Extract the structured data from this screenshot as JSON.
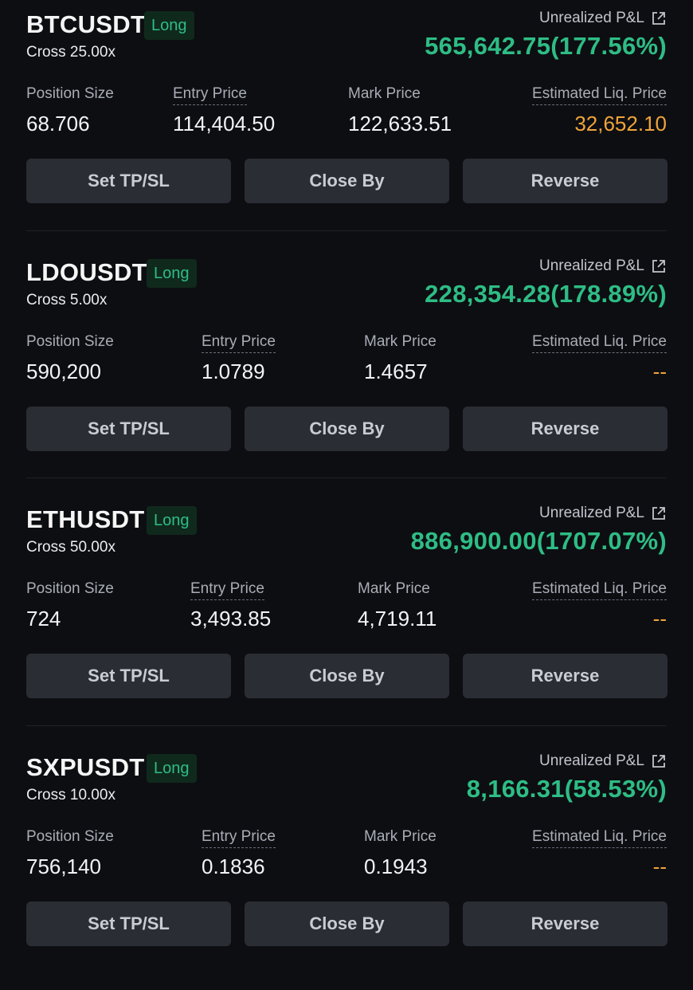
{
  "labels": {
    "unrealized_pnl": "Unrealized P&L",
    "position_size": "Position Size",
    "entry_price": "Entry Price",
    "mark_price": "Mark Price",
    "est_liq_price": "Estimated Liq. Price",
    "set_tpsl": "Set TP/SL",
    "close_by": "Close By",
    "reverse": "Reverse"
  },
  "colors": {
    "profit_green": "#2ebd85",
    "liq_orange": "#f0a43a",
    "background": "#0d0e12",
    "button_bg": "#2a2d34"
  },
  "icons": {
    "pnl_share": "external-link-icon"
  },
  "positions": [
    {
      "symbol": "BTCUSDT",
      "side": "Long",
      "margin_mode": "Cross 25.00x",
      "pnl": "565,642.75(177.56%)",
      "position_size": "68.706",
      "entry_price": "114,404.50",
      "mark_price": "122,633.51",
      "liq_price": "32,652.10"
    },
    {
      "symbol": "LDOUSDT",
      "side": "Long",
      "margin_mode": "Cross 5.00x",
      "pnl": "228,354.28(178.89%)",
      "position_size": "590,200",
      "entry_price": "1.0789",
      "mark_price": "1.4657",
      "liq_price": "--"
    },
    {
      "symbol": "ETHUSDT",
      "side": "Long",
      "margin_mode": "Cross 50.00x",
      "pnl": "886,900.00(1707.07%)",
      "position_size": "724",
      "entry_price": "3,493.85",
      "mark_price": "4,719.11",
      "liq_price": "--"
    },
    {
      "symbol": "SXPUSDT",
      "side": "Long",
      "margin_mode": "Cross 10.00x",
      "pnl": "8,166.31(58.53%)",
      "position_size": "756,140",
      "entry_price": "0.1836",
      "mark_price": "0.1943",
      "liq_price": "--"
    }
  ]
}
